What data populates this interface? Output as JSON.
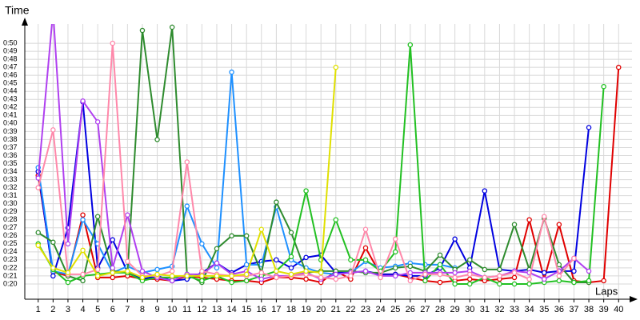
{
  "chart_data": {
    "type": "line",
    "title": "Time",
    "x_label": "Laps",
    "x": [
      1,
      2,
      3,
      4,
      5,
      6,
      7,
      8,
      9,
      10,
      11,
      12,
      13,
      14,
      15,
      16,
      17,
      18,
      19,
      20,
      21,
      22,
      23,
      24,
      25,
      26,
      27,
      28,
      29,
      30,
      31,
      32,
      33,
      34,
      35,
      36,
      37,
      38,
      39,
      40
    ],
    "xlim": [
      0.1,
      40.9
    ],
    "xticks": [
      1,
      2,
      3,
      4,
      5,
      6,
      7,
      8,
      9,
      10,
      11,
      12,
      13,
      14,
      15,
      16,
      17,
      18,
      19,
      20,
      21,
      22,
      23,
      24,
      25,
      26,
      27,
      28,
      29,
      30,
      31,
      32,
      33,
      34,
      35,
      36,
      37,
      38,
      39,
      40
    ],
    "ylim": [
      18.1,
      52.4
    ],
    "yticks": [
      {
        "value": 20,
        "label": "0:20"
      },
      {
        "value": 21,
        "label": "0:21"
      },
      {
        "value": 22,
        "label": "0:22"
      },
      {
        "value": 23,
        "label": "0:23"
      },
      {
        "value": 24,
        "label": "0:24"
      },
      {
        "value": 25,
        "label": "0:25"
      },
      {
        "value": 26,
        "label": "0:26"
      },
      {
        "value": 27,
        "label": "0:27"
      },
      {
        "value": 28,
        "label": "0:28"
      },
      {
        "value": 29,
        "label": "0:29"
      },
      {
        "value": 30,
        "label": "0:30"
      },
      {
        "value": 31,
        "label": "0:31"
      },
      {
        "value": 32,
        "label": "0:32"
      },
      {
        "value": 33,
        "label": "0:33"
      },
      {
        "value": 34,
        "label": "0:34"
      },
      {
        "value": 35,
        "label": "0:35"
      },
      {
        "value": 36,
        "label": "0:36"
      },
      {
        "value": 37,
        "label": "0:37"
      },
      {
        "value": 38,
        "label": "0:38"
      },
      {
        "value": 39,
        "label": "0:39"
      },
      {
        "value": 40,
        "label": "0:40"
      },
      {
        "value": 41,
        "label": "0:41"
      },
      {
        "value": 42,
        "label": "0:42"
      },
      {
        "value": 43,
        "label": "0:43"
      },
      {
        "value": 44,
        "label": "0:44"
      },
      {
        "value": 45,
        "label": "0:45"
      },
      {
        "value": 46,
        "label": "0:46"
      },
      {
        "value": 47,
        "label": "0:47"
      },
      {
        "value": 48,
        "label": "0:48"
      },
      {
        "value": 49,
        "label": "0:49"
      },
      {
        "value": 50,
        "label": "0:50"
      }
    ],
    "grid": true,
    "series": [
      {
        "color": "#e00000",
        "values": [
          33.5,
          21.5,
          21,
          28.6,
          20.8,
          20.8,
          21,
          20.6,
          20.6,
          20.4,
          21,
          20.8,
          20.6,
          20.4,
          20.4,
          20.2,
          20.8,
          20.8,
          20.6,
          20.2,
          21.6,
          20.6,
          24.5,
          21.2,
          21.2,
          20.8,
          20.4,
          20.2,
          20.4,
          20.6,
          20.4,
          20.6,
          20.8,
          28,
          20.6,
          27.4,
          20.4,
          20.2,
          20.4,
          47
        ]
      },
      {
        "color": "#0000e0",
        "values": [
          34,
          21,
          27,
          42.7,
          22,
          25.5,
          21.5,
          20.6,
          21,
          20.4,
          20.6,
          21.4,
          22.6,
          21.4,
          22.4,
          22.8,
          23,
          22,
          23.3,
          23.6,
          21.4,
          21.4,
          21.6,
          21.2,
          21.2,
          21,
          21,
          22,
          25.6,
          22,
          31.6,
          21.8,
          21.6,
          21.8,
          21.4,
          21.6,
          21.6,
          39.5,
          null,
          null
        ]
      },
      {
        "color": "#1e90ff",
        "values": [
          34.5,
          21.6,
          21.2,
          28,
          25,
          21.4,
          22.2,
          21.4,
          21.8,
          22.2,
          29.7,
          25,
          22,
          46.4,
          22.4,
          22.4,
          29.6,
          23,
          22,
          21.4,
          21.2,
          21.4,
          22.8,
          22,
          22.2,
          22.6,
          22.4,
          22.4,
          22,
          null,
          null,
          null,
          null,
          null,
          null,
          null,
          null,
          null,
          null,
          null
        ]
      },
      {
        "color": "#2e8b2e",
        "values": [
          26.4,
          25.2,
          21,
          20.4,
          28.4,
          21.6,
          21.4,
          51.6,
          38,
          52,
          21.2,
          20.2,
          24.4,
          26,
          26,
          21.4,
          30.2,
          26.4,
          21.4,
          21.6,
          21.6,
          21.6,
          21.4,
          21.4,
          22,
          22.2,
          21.6,
          23.6,
          21.8,
          23,
          21.8,
          21.8,
          27.4,
          21.8,
          28.2,
          22.4,
          20.2,
          20.2,
          null,
          null
        ]
      },
      {
        "color": "#22c022",
        "values": [
          25,
          21.8,
          20.2,
          21,
          21.2,
          21.4,
          21.4,
          20.4,
          20.8,
          20.8,
          21,
          20.4,
          21,
          20.2,
          20.4,
          21,
          21.6,
          23.4,
          31.6,
          23,
          28,
          23,
          23,
          21.6,
          24,
          49.8,
          20.4,
          22.4,
          20,
          20,
          20.8,
          20,
          20,
          20,
          20.2,
          20.4,
          20.2,
          20.4,
          44.6,
          null
        ]
      },
      {
        "color": "#b040f0",
        "values": [
          33.2,
          54,
          25,
          42.8,
          40.2,
          22,
          28.6,
          21.6,
          20.8,
          20.4,
          21.2,
          21.2,
          22.6,
          21.2,
          21.6,
          20.6,
          21,
          21,
          21.4,
          20.6,
          21.2,
          21.4,
          21.6,
          21,
          21,
          21.4,
          21.4,
          21.4,
          21.4,
          21.6,
          20.8,
          21,
          21.6,
          21.4,
          20.6,
          21.6,
          23.2,
          21.6,
          null,
          null
        ]
      },
      {
        "color": "#ff88aa",
        "values": [
          32,
          39.2,
          21.2,
          21.2,
          21.8,
          50,
          22.8,
          21,
          21,
          21.6,
          35.2,
          21.6,
          21.2,
          21,
          21,
          21.4,
          20.8,
          21,
          21.2,
          20.8,
          20.6,
          21,
          26.8,
          20.8,
          25.6,
          20.4,
          21.2,
          21.2,
          20.8,
          21.2,
          20.8,
          21,
          21.4,
          20.6,
          28.4,
          21,
          23.2,
          null,
          null,
          null
        ]
      },
      {
        "color": "#e0e000",
        "values": [
          24.8,
          22,
          21.4,
          24.2,
          21,
          21.4,
          21.6,
          20.8,
          21.2,
          21,
          21,
          21,
          21,
          21,
          21.2,
          26.8,
          21.6,
          21.2,
          21.6,
          21.4,
          47,
          null,
          null,
          null,
          null,
          null,
          null,
          null,
          null,
          null,
          null,
          null,
          null,
          null,
          null,
          null,
          null,
          null,
          null,
          null
        ]
      }
    ]
  }
}
